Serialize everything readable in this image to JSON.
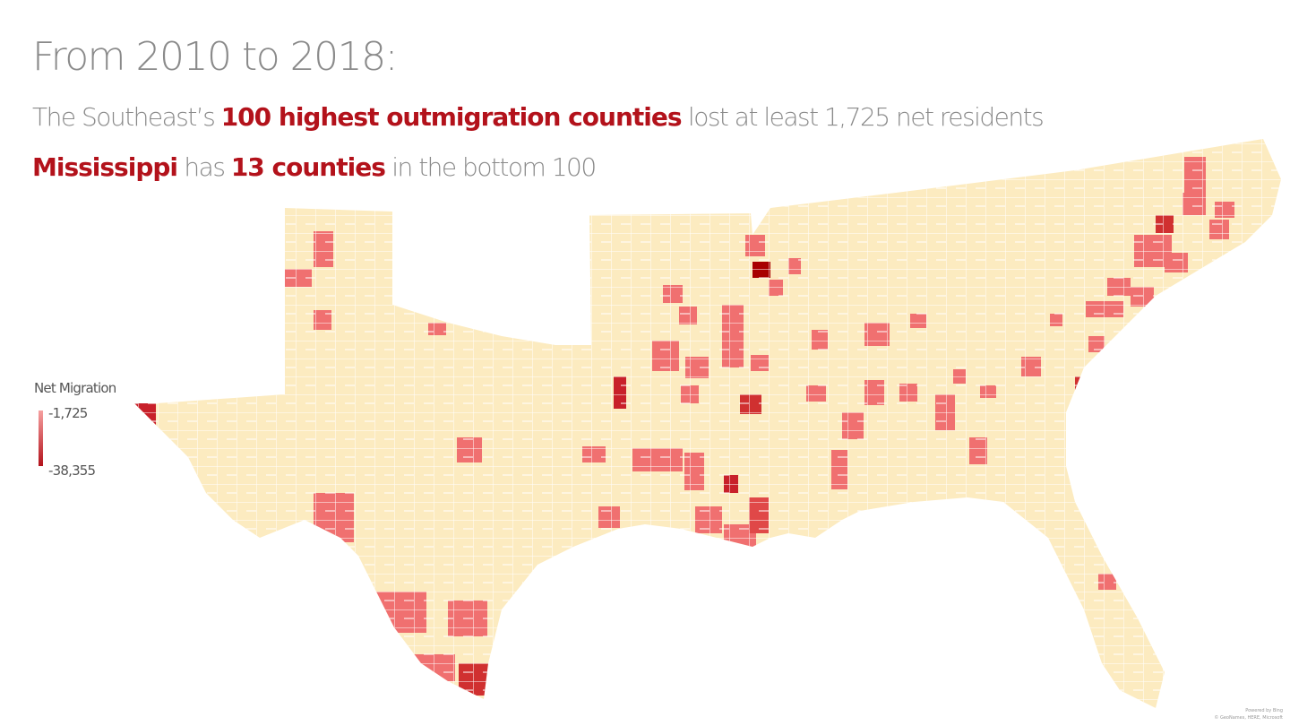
{
  "header": {
    "title": "From 2010 to 2018:",
    "line1": [
      "The Southeast’s ",
      "100 highest outmigration counties",
      " lost at least 1,725 net residents"
    ],
    "line2": [
      "Mississippi",
      " has ",
      "13 counties",
      " in the bottom 100"
    ]
  },
  "legend": {
    "title": "Net Migration",
    "top_label": "-1,725",
    "bottom_label": "-38,355"
  },
  "attribution": [
    "Powered by Bing",
    "© GeoNames, HERE, Microsoft"
  ]
}
